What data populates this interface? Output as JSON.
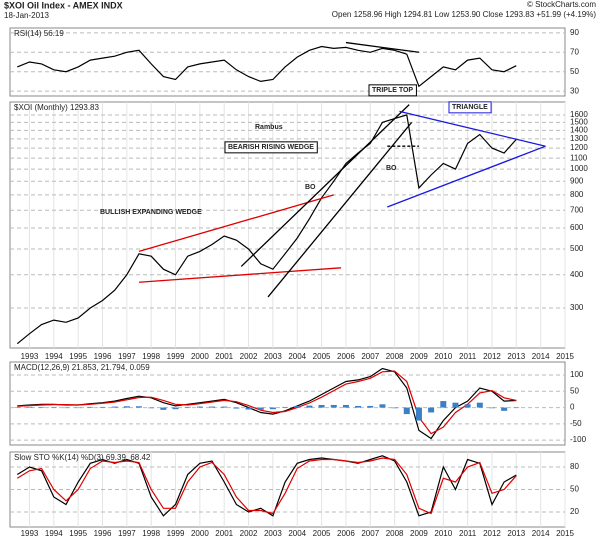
{
  "header": {
    "title": "$XOI Oil Index - AMEX INDX",
    "date": "18-Jan-2013",
    "quote": "Open 1258.96  High 1294.81  Low 1253.90  Close 1293.83  +51.99 (+4.19%)",
    "credit": "© StockCharts.com"
  },
  "chart_data": [
    {
      "type": "line",
      "title": "RSI(14) 56.19",
      "x": [
        1992.5,
        1993,
        1993.5,
        1994,
        1994.5,
        1995,
        1995.5,
        1996,
        1996.5,
        1997,
        1997.5,
        1998,
        1998.5,
        1999,
        1999.5,
        2000,
        2000.5,
        2001,
        2001.5,
        2002,
        2002.5,
        2003,
        2003.5,
        2004,
        2004.5,
        2005,
        2005.5,
        2006,
        2006.5,
        2007,
        2007.5,
        2008,
        2008.5,
        2009,
        2009.5,
        2010,
        2010.5,
        2011,
        2011.5,
        2012,
        2012.5,
        2013
      ],
      "series": [
        {
          "color": "#000000",
          "values": [
            55,
            60,
            58,
            52,
            50,
            55,
            62,
            64,
            66,
            70,
            72,
            58,
            45,
            42,
            55,
            58,
            60,
            62,
            52,
            45,
            40,
            42,
            55,
            65,
            72,
            76,
            74,
            75,
            72,
            70,
            74,
            72,
            68,
            35,
            45,
            55,
            52,
            62,
            64,
            52,
            50,
            56.19
          ]
        }
      ],
      "xlim": [
        1992.2,
        2015
      ],
      "ylim": [
        25,
        95
      ],
      "yticks": [
        30,
        50,
        70,
        90
      ],
      "grid": true,
      "trendlines": [
        {
          "x": [
            2006,
            2009
          ],
          "y": [
            80,
            70
          ],
          "color": "#000000"
        }
      ]
    },
    {
      "type": "line",
      "title": "$XOI (Monthly) 1293.83",
      "log": true,
      "x": [
        1992.5,
        1993,
        1993.5,
        1994,
        1994.5,
        1995,
        1995.5,
        1996,
        1996.5,
        1997,
        1997.5,
        1998,
        1998.5,
        1999,
        1999.5,
        2000,
        2000.5,
        2001,
        2001.5,
        2002,
        2002.5,
        2003,
        2003.5,
        2004,
        2004.5,
        2005,
        2005.5,
        2006,
        2006.5,
        2007,
        2007.5,
        2008,
        2008.5,
        2009,
        2009.5,
        2010,
        2010.5,
        2011,
        2011.5,
        2012,
        2012.5,
        2013
      ],
      "series": [
        {
          "color": "#000000",
          "values": [
            220,
            240,
            260,
            270,
            265,
            275,
            300,
            320,
            350,
            400,
            480,
            470,
            420,
            400,
            470,
            490,
            520,
            560,
            540,
            500,
            440,
            420,
            480,
            550,
            650,
            780,
            900,
            1050,
            1150,
            1250,
            1500,
            1550,
            1600,
            850,
            950,
            1050,
            1000,
            1250,
            1350,
            1200,
            1150,
            1293.83
          ]
        }
      ],
      "xlim": [
        1992.2,
        2015
      ],
      "ylim": [
        212,
        1790
      ],
      "xticks": [
        1993,
        1994,
        1995,
        1996,
        1997,
        1998,
        1999,
        2000,
        2001,
        2002,
        2003,
        2004,
        2005,
        2006,
        2007,
        2008,
        2009,
        2010,
        2011,
        2012,
        2013,
        2014,
        2015
      ],
      "yticks": [
        300,
        400,
        500,
        600,
        700,
        800,
        900,
        1000,
        1100,
        1200,
        1300,
        1400,
        1500,
        1600
      ],
      "grid": true,
      "trendlines": [
        {
          "x": [
            1997.5,
            2005.5
          ],
          "y": [
            490,
            800
          ],
          "color": "#e00000"
        },
        {
          "x": [
            1997.5,
            2005.8
          ],
          "y": [
            375,
            425
          ],
          "color": "#e00000"
        },
        {
          "x": [
            2001.7,
            2008.6
          ],
          "y": [
            430,
            1750
          ],
          "color": "#000000"
        },
        {
          "x": [
            2002.8,
            2008.7
          ],
          "y": [
            330,
            1500
          ],
          "color": "#000000"
        },
        {
          "x": [
            2008.2,
            2014.2
          ],
          "y": [
            1650,
            1220
          ],
          "color": "#1a1adf"
        },
        {
          "x": [
            2007.7,
            2014.2
          ],
          "y": [
            720,
            1220
          ],
          "color": "#1a1adf"
        },
        {
          "x": [
            2007.7,
            2009
          ],
          "y": [
            1220,
            1220
          ],
          "color": "#000000",
          "dashed": true
        }
      ],
      "annotations": [
        {
          "text": "Rambus",
          "color": "#000000"
        },
        {
          "text": "BULLISH EXPANDING WEDGE",
          "color": "#e00000"
        },
        {
          "text": "BEARISH RISING WEDGE",
          "color": "#000000"
        },
        {
          "text": "TRIPLE TOP",
          "color": "#000000"
        },
        {
          "text": "TRIANGLE",
          "color": "#1a1adf"
        },
        {
          "text": "BO",
          "color": "#1a1adf"
        },
        {
          "text": "BO",
          "color": "#1a1adf"
        }
      ]
    },
    {
      "type": "line",
      "title": "MACD(12,26,9) 21.853, 21.794, 0.059",
      "x": [
        1992.5,
        1993,
        1993.5,
        1994,
        1994.5,
        1995,
        1995.5,
        1996,
        1996.5,
        1997,
        1997.5,
        1998,
        1998.5,
        1999,
        1999.5,
        2000,
        2000.5,
        2001,
        2001.5,
        2002,
        2002.5,
        2003,
        2003.5,
        2004,
        2004.5,
        2005,
        2005.5,
        2006,
        2006.5,
        2007,
        2007.5,
        2008,
        2008.5,
        2009,
        2009.5,
        2010,
        2010.5,
        2011,
        2011.5,
        2012,
        2012.5,
        2013
      ],
      "series": [
        {
          "color": "#000000",
          "values": [
            5,
            8,
            10,
            10,
            8,
            8,
            12,
            15,
            20,
            28,
            35,
            30,
            15,
            5,
            10,
            15,
            20,
            25,
            15,
            0,
            -15,
            -20,
            -10,
            5,
            20,
            40,
            60,
            80,
            85,
            95,
            120,
            110,
            60,
            -70,
            -95,
            -40,
            0,
            20,
            60,
            50,
            20,
            21.853
          ]
        },
        {
          "color": "#e00000",
          "values": [
            4,
            6,
            8,
            9,
            9,
            8,
            10,
            13,
            17,
            24,
            31,
            32,
            22,
            10,
            8,
            12,
            17,
            22,
            18,
            6,
            -8,
            -15,
            -12,
            0,
            14,
            32,
            52,
            72,
            80,
            90,
            110,
            112,
            80,
            -30,
            -80,
            -60,
            -15,
            10,
            45,
            52,
            30,
            21.794
          ]
        },
        {
          "color": "#3b7fc4",
          "bars": true,
          "values": [
            1,
            2,
            2,
            1,
            -1,
            0,
            2,
            2,
            3,
            4,
            4,
            -2,
            -7,
            -5,
            2,
            3,
            3,
            3,
            -3,
            -6,
            -7,
            -5,
            2,
            5,
            6,
            8,
            8,
            8,
            5,
            5,
            10,
            -2,
            -20,
            -40,
            -15,
            20,
            15,
            10,
            15,
            -2,
            -10,
            0.059
          ]
        }
      ],
      "xlim": [
        1992.2,
        2015
      ],
      "ylim": [
        -115,
        140
      ],
      "yticks": [
        -100,
        -50,
        0,
        50,
        100
      ],
      "grid": true
    },
    {
      "type": "line",
      "title": "Slow STO %K(14) %D(3) 69.39, 68.42",
      "x": [
        1992.5,
        1993,
        1993.5,
        1994,
        1994.5,
        1995,
        1995.5,
        1996,
        1996.5,
        1997,
        1997.5,
        1998,
        1998.5,
        1999,
        1999.5,
        2000,
        2000.5,
        2001,
        2001.5,
        2002,
        2002.5,
        2003,
        2003.5,
        2004,
        2004.5,
        2005,
        2005.5,
        2006,
        2006.5,
        2007,
        2007.5,
        2008,
        2008.5,
        2009,
        2009.5,
        2010,
        2010.5,
        2011,
        2011.5,
        2012,
        2012.5,
        2013
      ],
      "series": [
        {
          "color": "#000000",
          "values": [
            70,
            80,
            75,
            40,
            30,
            60,
            85,
            90,
            85,
            90,
            85,
            40,
            15,
            30,
            70,
            85,
            88,
            60,
            30,
            20,
            25,
            15,
            60,
            85,
            90,
            92,
            90,
            88,
            85,
            90,
            95,
            88,
            60,
            15,
            20,
            80,
            50,
            90,
            85,
            30,
            60,
            69.39
          ]
        },
        {
          "color": "#e00000",
          "values": [
            65,
            75,
            78,
            50,
            35,
            50,
            78,
            88,
            86,
            88,
            86,
            50,
            25,
            25,
            60,
            80,
            86,
            70,
            40,
            22,
            22,
            18,
            45,
            78,
            88,
            90,
            90,
            88,
            86,
            88,
            92,
            90,
            70,
            25,
            18,
            65,
            60,
            80,
            86,
            45,
            50,
            68.42
          ]
        }
      ],
      "xlim": [
        1992.2,
        2015
      ],
      "ylim": [
        0,
        100
      ],
      "xticks": [
        1993,
        1994,
        1995,
        1996,
        1997,
        1998,
        1999,
        2000,
        2001,
        2002,
        2003,
        2004,
        2005,
        2006,
        2007,
        2008,
        2009,
        2010,
        2011,
        2012,
        2013,
        2014,
        2015
      ],
      "yticks": [
        20,
        50,
        80
      ],
      "grid": true
    }
  ]
}
